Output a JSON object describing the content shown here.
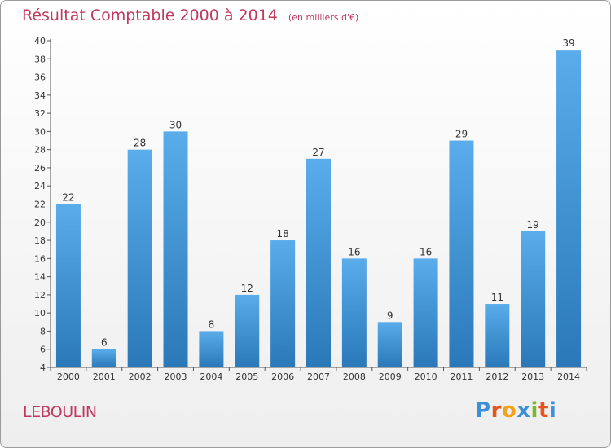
{
  "chart_data": {
    "type": "bar",
    "title": "Résultat Comptable 2000 à 2014",
    "subtitle": "(en milliers d'€)",
    "categories": [
      "2000",
      "2001",
      "2002",
      "2003",
      "2004",
      "2005",
      "2006",
      "2007",
      "2008",
      "2009",
      "2010",
      "2011",
      "2012",
      "2013",
      "2014"
    ],
    "values": [
      22,
      6,
      28,
      30,
      8,
      12,
      18,
      27,
      16,
      9,
      16,
      29,
      11,
      19,
      39
    ],
    "ylim": [
      4,
      40
    ],
    "yticks": [
      4,
      6,
      8,
      10,
      12,
      14,
      16,
      18,
      20,
      22,
      24,
      26,
      28,
      30,
      32,
      34,
      36,
      38,
      40
    ],
    "xlabel": "",
    "ylabel": "",
    "grid": false
  },
  "footer": {
    "commune": "LEBOULIN",
    "logo_text": "Proxiti",
    "logo_colors": [
      "#3d8fd6",
      "#e8541d",
      "#f2a11a",
      "#3d8fd6",
      "#7ab928",
      "#e8541d",
      "#3d8fd6"
    ]
  },
  "colors": {
    "title": "#c0395e",
    "bar_top": "#5aacea",
    "bar_bottom": "#2a78b8"
  }
}
